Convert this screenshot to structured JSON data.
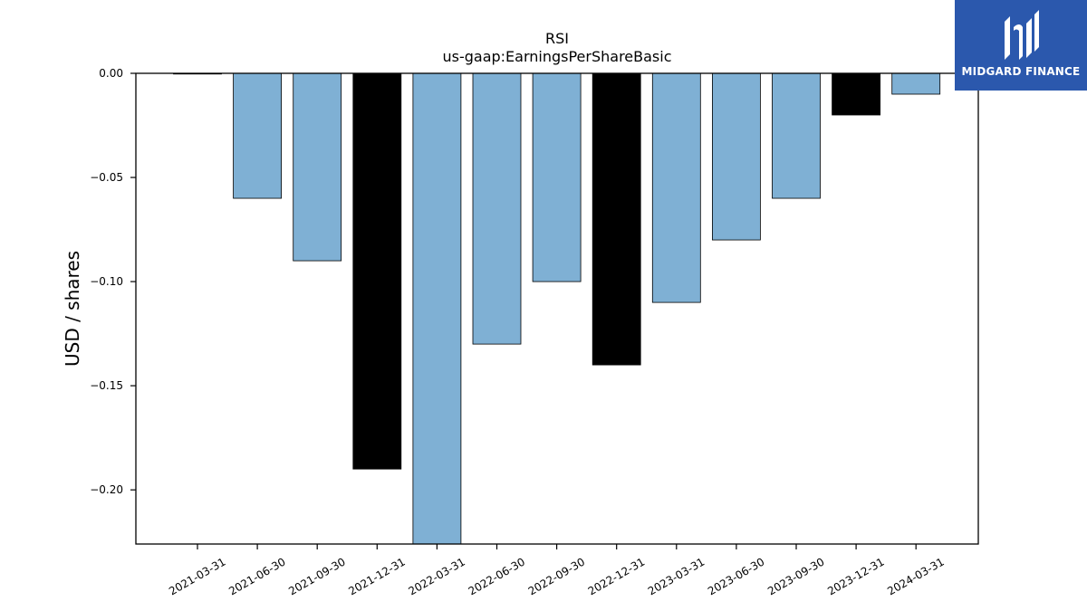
{
  "brand": {
    "name": "MIDGARD FINANCE",
    "bg_color": "#2b58ad",
    "fg_color": "#ffffff"
  },
  "chart_data": {
    "type": "bar",
    "title": "RSI",
    "subtitle": "us-gaap:EarningsPerShareBasic",
    "xlabel": "",
    "ylabel": "USD / shares",
    "categories": [
      "2021-03-31",
      "2021-06-30",
      "2021-09-30",
      "2021-12-31",
      "2022-03-31",
      "2022-06-30",
      "2022-09-30",
      "2022-12-31",
      "2023-03-31",
      "2023-06-30",
      "2023-09-30",
      "2023-12-31",
      "2024-03-31"
    ],
    "values": [
      0.0,
      -0.06,
      -0.09,
      -0.19,
      -0.23,
      -0.13,
      -0.1,
      -0.14,
      -0.11,
      -0.08,
      -0.06,
      -0.02,
      -0.01
    ],
    "highlight": [
      false,
      false,
      false,
      true,
      false,
      false,
      false,
      true,
      false,
      false,
      false,
      true,
      false
    ],
    "colors": {
      "normal": "#7fb0d4",
      "highlight": "#000000",
      "edge": "#000000"
    },
    "ylim": [
      -0.226,
      0.0
    ],
    "yticks": [
      "0.00",
      "−0.05",
      "−0.10",
      "−0.15",
      "−0.20"
    ],
    "ytick_values": [
      0.0,
      -0.05,
      -0.1,
      -0.15,
      -0.2
    ],
    "grid": false,
    "legend": "none"
  }
}
